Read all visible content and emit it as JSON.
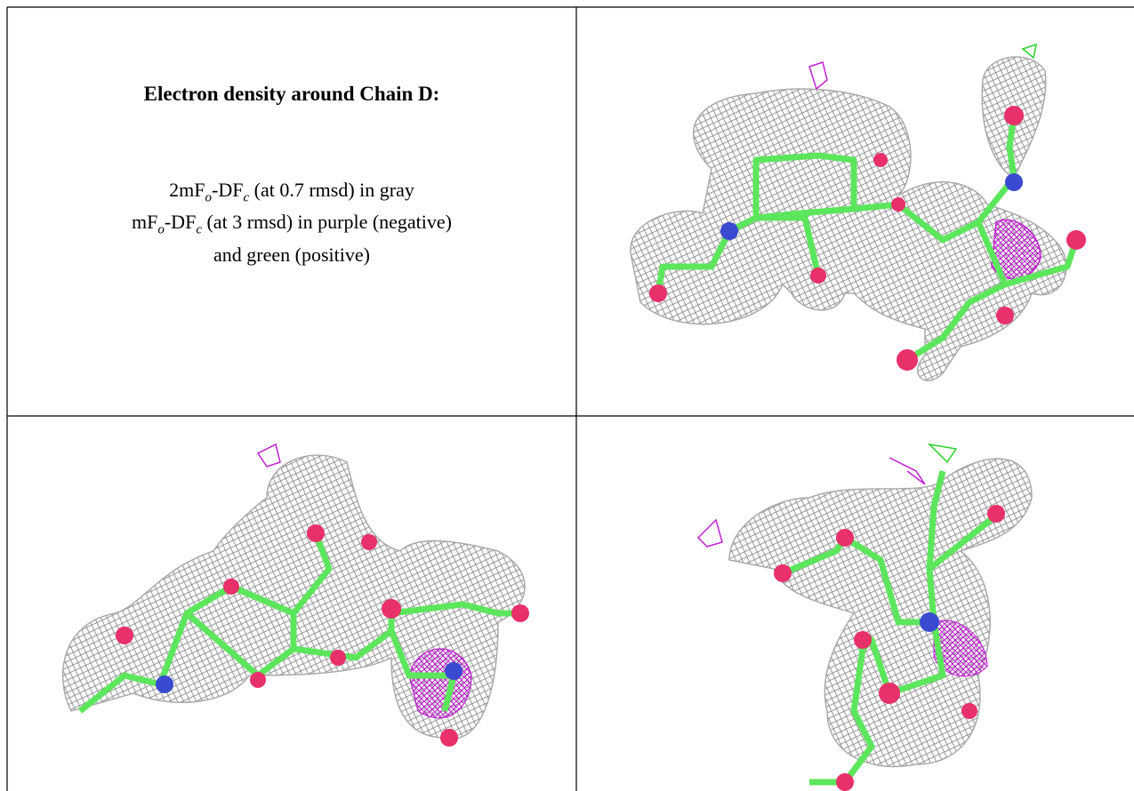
{
  "title": "Electron density around Chain D:",
  "legend": [
    [
      {
        "text": "2mF"
      },
      {
        "text": "o",
        "sub": true
      },
      {
        "text": "-DF"
      },
      {
        "text": "c",
        "sub": true
      },
      {
        "text": " (at 0.7 rmsd) in gray"
      }
    ],
    [
      {
        "text": "mF"
      },
      {
        "text": "o",
        "sub": true
      },
      {
        "text": "-DF"
      },
      {
        "text": "c",
        "sub": true
      },
      {
        "text": " (at 3 rmsd) in purple (negative)"
      }
    ],
    [
      {
        "text": "and green (positive)"
      }
    ]
  ]
}
